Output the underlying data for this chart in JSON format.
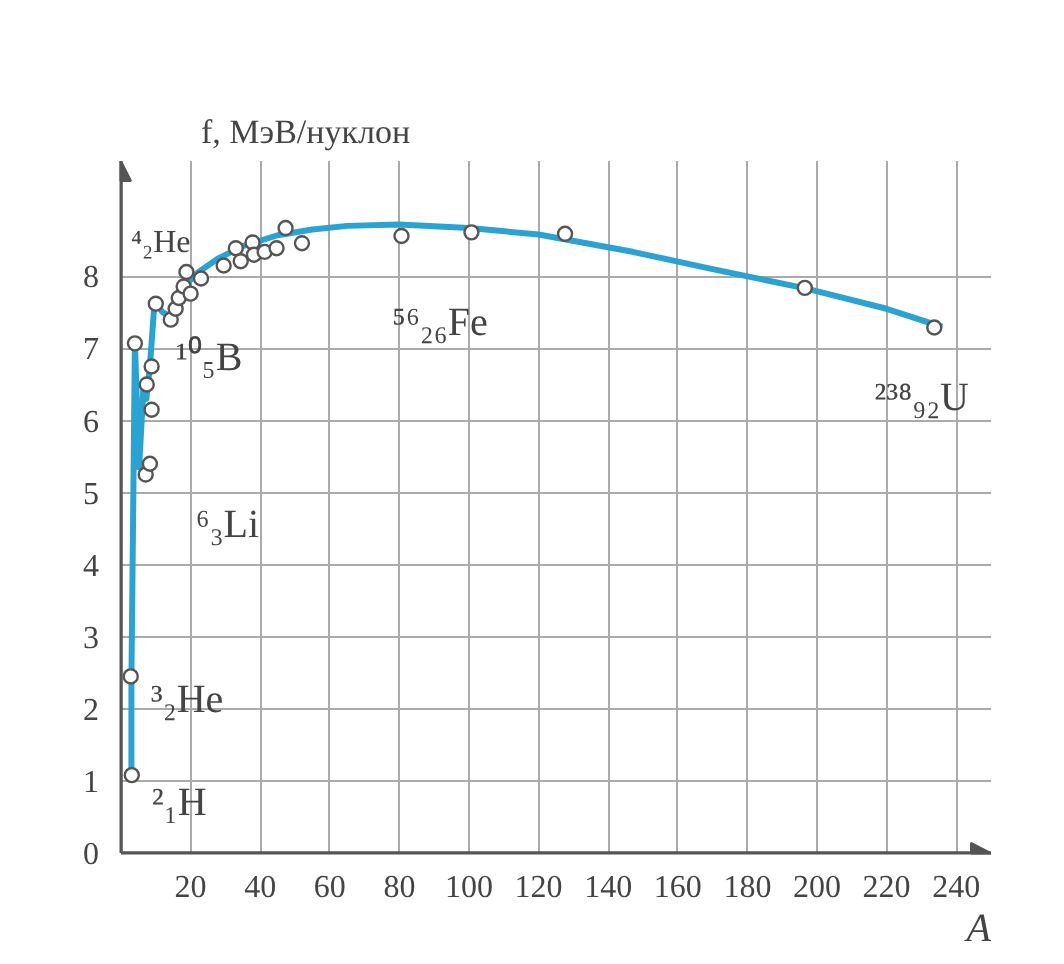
{
  "chart_data": {
    "type": "line",
    "xlabel": "A",
    "ylabel": "f, МэВ/нуклон",
    "xlim": [
      0,
      250
    ],
    "ylim": [
      0,
      9.6
    ],
    "xticks": [
      20,
      40,
      60,
      80,
      100,
      120,
      140,
      160,
      180,
      200,
      220,
      240
    ],
    "yticks": [
      0,
      1,
      2,
      3,
      4,
      5,
      6,
      7,
      8
    ],
    "grid": true,
    "line_style": "solid",
    "series": [
      {
        "color": "#2aa3d3",
        "x": [
          3,
          3,
          4,
          5.2,
          6.5,
          7.3,
          8.3,
          9.5,
          10,
          12,
          14,
          16,
          18,
          22,
          28,
          35,
          45,
          55,
          65,
          80,
          100,
          120,
          147,
          170,
          197,
          220,
          236
        ],
        "values": [
          1.08,
          2.45,
          7.07,
          5.35,
          6.5,
          6.3,
          6.75,
          7.55,
          7.62,
          7.5,
          7.45,
          7.65,
          7.85,
          8.05,
          8.25,
          8.42,
          8.57,
          8.65,
          8.7,
          8.72,
          8.67,
          8.58,
          8.34,
          8.1,
          7.83,
          7.55,
          7.3
        ]
      },
      {
        "type": "scatter",
        "marker": "circle",
        "color": "#555555",
        "x": [
          2.8,
          3.1,
          4,
          7.4,
          7.1,
          8.3,
          10,
          8.8,
          8.8,
          14.3,
          15.7,
          16.6,
          18,
          18.8,
          20,
          23,
          29.5,
          33,
          34.4,
          37.8,
          38.2,
          41.3,
          44.7,
          47.3,
          52,
          80.6,
          100.7,
          127.6,
          196.5,
          233.7
        ],
        "values": [
          2.45,
          1.08,
          7.07,
          6.5,
          5.25,
          5.4,
          7.62,
          6.75,
          6.15,
          7.4,
          7.55,
          7.7,
          7.86,
          8.06,
          7.76,
          7.97,
          8.15,
          8.39,
          8.21,
          8.47,
          8.3,
          8.34,
          8.39,
          8.67,
          8.46,
          8.56,
          8.61,
          8.59,
          7.84,
          7.29
        ]
      }
    ],
    "annotations": [
      {
        "text": "⁴₂He",
        "x": 4,
        "y": 7.07
      },
      {
        "text": "¹⁰₅B",
        "x": 10,
        "y": 6.75
      },
      {
        "text": "⁶₃Li",
        "x": 7.1,
        "y": 5.25
      },
      {
        "text": "³₂He",
        "x": 2.8,
        "y": 2.45
      },
      {
        "text": "²₁H",
        "x": 3.1,
        "y": 1.08
      },
      {
        "text": "⁵⁶₂₆Fe",
        "x": 52,
        "y": 8.46
      },
      {
        "text": "²³⁸₉₂U",
        "x": 233.7,
        "y": 7.29
      }
    ]
  }
}
